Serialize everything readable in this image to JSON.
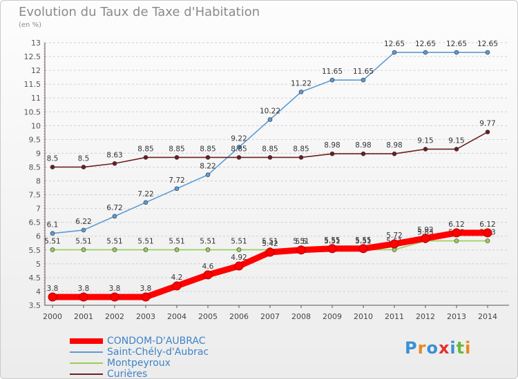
{
  "header": {
    "title": "Evolution du Taux de Taxe d'Habitation",
    "subtitle": "(en %)"
  },
  "logo": {
    "text": "Proxiti",
    "letter_colors": [
      "#3a8fd6",
      "#e58a1f",
      "#3a8fd6",
      "#e53030",
      "#3a8fd6",
      "#6bb83a",
      "#e58a1f"
    ]
  },
  "chart_data": {
    "type": "line",
    "categories": [
      "2000",
      "2001",
      "2002",
      "2003",
      "2004",
      "2005",
      "2006",
      "2007",
      "2008",
      "2009",
      "2010",
      "2011",
      "2012",
      "2013",
      "2014"
    ],
    "ylim": [
      3.5,
      13
    ],
    "yticks": [
      "3.5",
      "4",
      "4.5",
      "5",
      "5.5",
      "6",
      "6.5",
      "7",
      "7.5",
      "8",
      "8.5",
      "9",
      "9.5",
      "10",
      "10.5",
      "11",
      "11.5",
      "12",
      "12.5",
      "13"
    ],
    "grid": "horizontal dashed",
    "legend_position": "bottom-left",
    "series": [
      {
        "name": "Montpeyroux",
        "color": "#9acd5a",
        "values": [
          5.51,
          5.51,
          5.51,
          5.51,
          5.51,
          5.51,
          5.51,
          5.51,
          5.51,
          5.51,
          5.51,
          5.51,
          5.83,
          5.83,
          5.83
        ],
        "labels": [
          "5.51",
          "5.51",
          "5.51",
          "5.51",
          "5.51",
          "5.51",
          "5.51",
          "5.51",
          "5.51",
          "5.51",
          "5.51",
          "5.51",
          "5.83",
          "5.83",
          "5.83"
        ]
      },
      {
        "name": "Saint-Chély-d'Aubrac",
        "color": "#5b9bd5",
        "values": [
          6.1,
          6.22,
          6.72,
          7.22,
          7.72,
          8.22,
          9.22,
          10.22,
          11.22,
          11.65,
          11.65,
          12.65,
          12.65,
          12.65,
          12.65
        ],
        "labels": [
          "6.1",
          "6.22",
          "6.72",
          "7.22",
          "7.72",
          "8.22",
          "9.22",
          "10.22",
          "11.22",
          "11.65",
          "11.65",
          "12.65",
          "12.65",
          "12.65",
          "12.65"
        ]
      },
      {
        "name": "Curières",
        "color": "#6b1f1f",
        "values": [
          8.5,
          8.5,
          8.63,
          8.85,
          8.85,
          8.85,
          8.85,
          8.85,
          8.85,
          8.98,
          8.98,
          8.98,
          9.15,
          9.15,
          9.77
        ],
        "labels": [
          "8.5",
          "8.5",
          "8.63",
          "8.85",
          "8.85",
          "8.85",
          "8.85",
          "8.85",
          "8.85",
          "8.98",
          "8.98",
          "8.98",
          "9.15",
          "9.15",
          "9.77"
        ]
      },
      {
        "name": "CONDOM-D'AUBRAC",
        "color": "#ff0000",
        "values": [
          3.8,
          3.8,
          3.8,
          3.8,
          4.2,
          4.6,
          4.92,
          5.42,
          5.5,
          5.55,
          5.55,
          5.72,
          5.92,
          6.12,
          6.12
        ],
        "labels": [
          "3.8",
          "3.8",
          "3.8",
          "3.8",
          "4.2",
          "4.6",
          "4.92",
          "5.42",
          "5.5",
          "5.55",
          "5.55",
          "5.72",
          "5.92",
          "6.12",
          "6.12"
        ]
      }
    ]
  },
  "legend": {
    "items": [
      {
        "label": "CONDOM-D'AUBRAC",
        "color": "#ff0000",
        "width": 8
      },
      {
        "label": "Saint-Chély-d'Aubrac",
        "color": "#5b9bd5",
        "width": 2
      },
      {
        "label": "Montpeyroux",
        "color": "#9acd5a",
        "width": 2
      },
      {
        "label": "Curières",
        "color": "#6b1f1f",
        "width": 2
      }
    ]
  }
}
